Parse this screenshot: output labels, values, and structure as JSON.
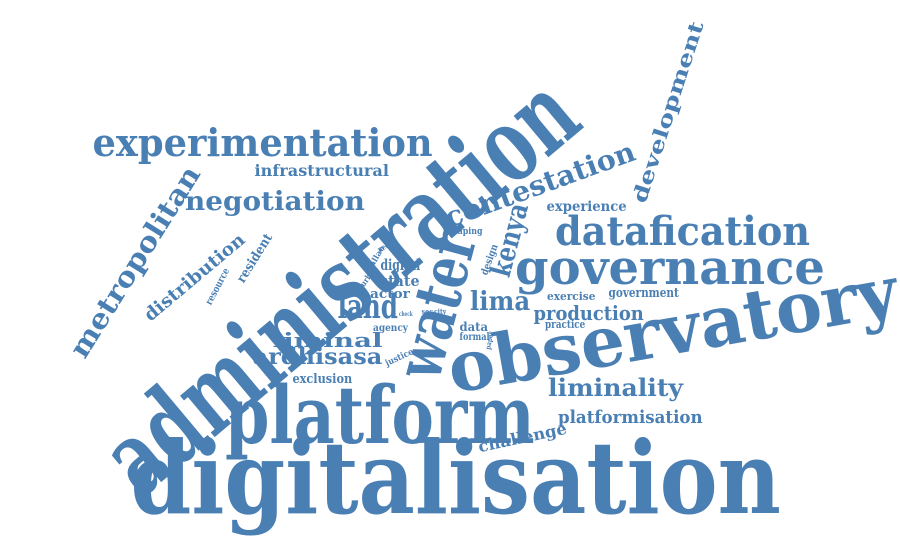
{
  "colors": {
    "word": "#4a7fb4",
    "background": "#ffffff"
  },
  "words": [
    "administration",
    "digitalisation",
    "observatory",
    "platform",
    "governance",
    "water",
    "datafication",
    "experimentation",
    "metropolitan",
    "contestation",
    "negotiation",
    "kenya",
    "development",
    "land",
    "ardhisasa",
    "liminality",
    "liminal",
    "lima",
    "production",
    "platformisation",
    "challenge",
    "distribution",
    "infrastructural",
    "experience",
    "exclusion",
    "resident",
    "digital",
    "state",
    "actor",
    "government",
    "exercise",
    "practice",
    "shaping",
    "design",
    "resource",
    "agency",
    "data",
    "formal",
    "justice",
    "urban",
    "callao",
    "need",
    "city",
    "sec",
    "paper",
    "check"
  ]
}
